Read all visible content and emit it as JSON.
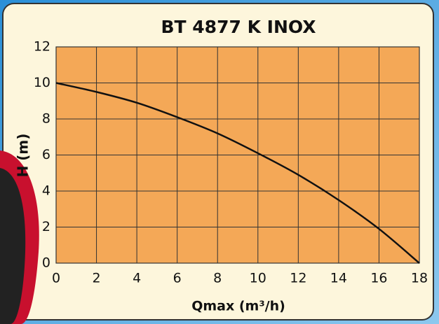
{
  "chart_data": {
    "type": "line",
    "title": "BT 4877 K INOX",
    "x_label": "Qmax (m³/h)",
    "y_label": "H (m)",
    "x": [
      0,
      2,
      4,
      6,
      8,
      10,
      12,
      14,
      16,
      18
    ],
    "series": [
      {
        "color": "#111111",
        "values": [
          10,
          9.5,
          8.9,
          8.1,
          7.2,
          6.1,
          4.9,
          3.5,
          1.9,
          0
        ]
      }
    ],
    "xlim": [
      0,
      18
    ],
    "xticks": [
      0,
      2,
      4,
      6,
      8,
      10,
      12,
      14,
      16,
      18
    ],
    "ylim": [
      0,
      12
    ],
    "yticks": [
      0,
      2,
      4,
      6,
      8,
      10,
      12
    ],
    "grid": true,
    "plot_background": "#f4a857"
  }
}
